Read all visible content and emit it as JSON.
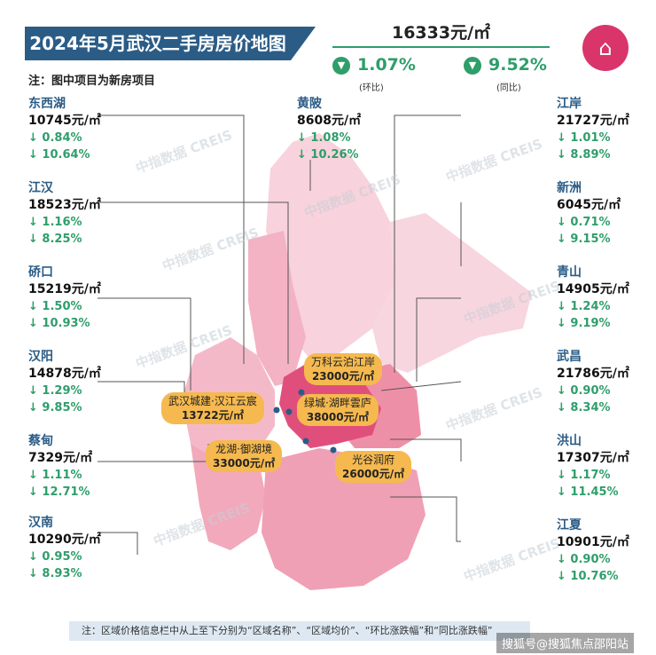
{
  "title": "2024年5月武汉二手房房价地图",
  "note": "注：图中项目为新房项目",
  "average": {
    "price": "16333元/㎡",
    "mom": "1.07%",
    "mom_label": "(环比)",
    "yoy": "9.52%",
    "yoy_label": "(同比)"
  },
  "watermark": {
    "cn": "中指数据",
    "en": "CREIS"
  },
  "districts": [
    {
      "name": "东西湖",
      "price": "10745元/㎡",
      "mom": "↓ 0.84%",
      "yoy": "↓ 10.64%"
    },
    {
      "name": "江汉",
      "price": "18523元/㎡",
      "mom": "↓ 1.16%",
      "yoy": "↓ 8.25%"
    },
    {
      "name": "硚口",
      "price": "15219元/㎡",
      "mom": "↓ 1.50%",
      "yoy": "↓ 10.93%"
    },
    {
      "name": "汉阳",
      "price": "14878元/㎡",
      "mom": "↓ 1.29%",
      "yoy": "↓ 9.85%"
    },
    {
      "name": "蔡甸",
      "price": "7329元/㎡",
      "mom": "↓ 1.11%",
      "yoy": "↓ 12.71%"
    },
    {
      "name": "汉南",
      "price": "10290元/㎡",
      "mom": "↓ 0.95%",
      "yoy": "↓ 8.93%"
    },
    {
      "name": "黄陂",
      "price": "8608元/㎡",
      "mom": "↓ 1.08%",
      "yoy": "↓ 10.26%"
    },
    {
      "name": "江岸",
      "price": "21727元/㎡",
      "mom": "↓ 1.01%",
      "yoy": "↓ 8.89%"
    },
    {
      "name": "新洲",
      "price": "6045元/㎡",
      "mom": "↓ 0.71%",
      "yoy": "↓ 9.15%"
    },
    {
      "name": "青山",
      "price": "14905元/㎡",
      "mom": "↓ 1.24%",
      "yoy": "↓ 9.19%"
    },
    {
      "name": "武昌",
      "price": "21786元/㎡",
      "mom": "↓ 0.90%",
      "yoy": "↓ 8.34%"
    },
    {
      "name": "洪山",
      "price": "17307元/㎡",
      "mom": "↓ 1.17%",
      "yoy": "↓ 11.45%"
    },
    {
      "name": "江夏",
      "price": "10901元/㎡",
      "mom": "↓ 0.90%",
      "yoy": "↓ 10.76%"
    }
  ],
  "projects": [
    {
      "name": "万科云泊江岸",
      "price": "23000元/㎡"
    },
    {
      "name": "武汉城建·汉江云宸",
      "price": "13722元/㎡"
    },
    {
      "name": "绿城·湖畔雲庐",
      "price": "38000元/㎡"
    },
    {
      "name": "龙湖·御湖境",
      "price": "33000元/㎡"
    },
    {
      "name": "光谷润府",
      "price": "26000元/㎡"
    }
  ],
  "footer": "注：区域价格信息栏中从上至下分别为“区域名称”、“区域均价”、“环比涨跌幅”和“同比涨跌幅”",
  "credit": "搜狐号@搜狐焦点邵阳站",
  "colors": {
    "banner": "#2b5c86",
    "down": "#2e9e6a",
    "project": "#f5b94f",
    "map_light": "#f6c9d4",
    "map_mid": "#ee95ab",
    "map_dark": "#d9356b"
  }
}
